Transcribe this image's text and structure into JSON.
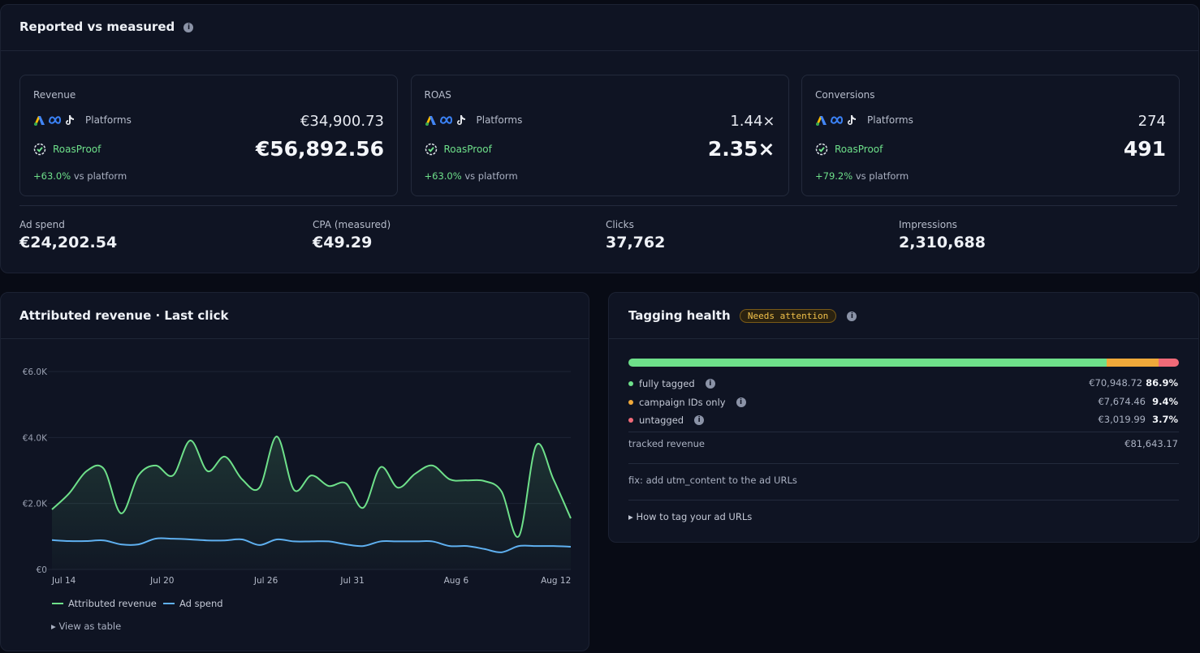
{
  "header": {
    "title": "Reported vs measured"
  },
  "cards": [
    {
      "label": "Revenue",
      "platforms_label": "Platforms",
      "platforms_value": "€34,900.73",
      "measured_label": "RoasProof",
      "measured_value": "€56,892.56",
      "delta": "+63.0%",
      "delta_suffix": "vs platform"
    },
    {
      "label": "ROAS",
      "platforms_label": "Platforms",
      "platforms_value": "1.44×",
      "measured_label": "RoasProof",
      "measured_value": "2.35×",
      "delta": "+63.0%",
      "delta_suffix": "vs platform"
    },
    {
      "label": "Conversions",
      "platforms_label": "Platforms",
      "platforms_value": "274",
      "measured_label": "RoasProof",
      "measured_value": "491",
      "delta": "+79.2%",
      "delta_suffix": "vs platform"
    }
  ],
  "kpis": [
    {
      "label": "Ad spend",
      "value": "€24,202.54"
    },
    {
      "label": "CPA (measured)",
      "value": "€49.29"
    },
    {
      "label": "Clicks",
      "value": "37,762"
    },
    {
      "label": "Impressions",
      "value": "2,310,688"
    }
  ],
  "chart_data": {
    "type": "line",
    "title": "Attributed revenue · Last click",
    "categories": [
      "Jul 14",
      null,
      null,
      null,
      null,
      null,
      "Jul 20",
      null,
      null,
      null,
      null,
      null,
      "Jul 26",
      null,
      null,
      null,
      null,
      "Jul 31",
      null,
      null,
      null,
      null,
      null,
      "Aug 6",
      null,
      null,
      null,
      null,
      null,
      "Aug 12",
      null
    ],
    "series": [
      {
        "name": "Attributed revenue",
        "color": "#6ee08a",
        "values": [
          1820,
          2310,
          2980,
          3050,
          1700,
          2850,
          3150,
          2850,
          3910,
          2980,
          3420,
          2730,
          2480,
          4030,
          2410,
          2850,
          2530,
          2610,
          1870,
          3100,
          2480,
          2900,
          3150,
          2730,
          2700,
          2680,
          2360,
          1010,
          3760,
          2730,
          1550
        ]
      },
      {
        "name": "Ad spend",
        "color": "#5fb0f0",
        "values": [
          890,
          860,
          860,
          880,
          760,
          760,
          935,
          930,
          910,
          880,
          880,
          910,
          740,
          910,
          850,
          850,
          850,
          760,
          710,
          850,
          850,
          850,
          850,
          710,
          710,
          620,
          520,
          710,
          710,
          710,
          690
        ]
      }
    ],
    "ylim": [
      0,
      6000
    ],
    "yticks": [
      {
        "value": 0,
        "label": "€0"
      },
      {
        "value": 2000,
        "label": "€2.0K"
      },
      {
        "value": 4000,
        "label": "€4.0K"
      },
      {
        "value": 6000,
        "label": "€6.0K"
      }
    ],
    "grid": true,
    "table_toggle": "View as table"
  },
  "tagging": {
    "title": "Tagging health",
    "badge": "Needs attention",
    "rows": [
      {
        "label": "fully tagged",
        "color": "#6ee08a",
        "amount": "€70,948.72",
        "share": 86.9,
        "share_label": "86.9%"
      },
      {
        "label": "campaign IDs only",
        "color": "#f0a93a",
        "amount": "€7,674.46",
        "share": 9.4,
        "share_label": "9.4%"
      },
      {
        "label": "untagged",
        "color": "#f06a78",
        "amount": "€3,019.99",
        "share": 3.7,
        "share_label": "3.7%"
      }
    ],
    "total_label": "tracked revenue",
    "total_value": "€81,643.17",
    "fix": "fix: add utm_content to the ad URLs",
    "howto": "How to tag your ad URLs"
  }
}
